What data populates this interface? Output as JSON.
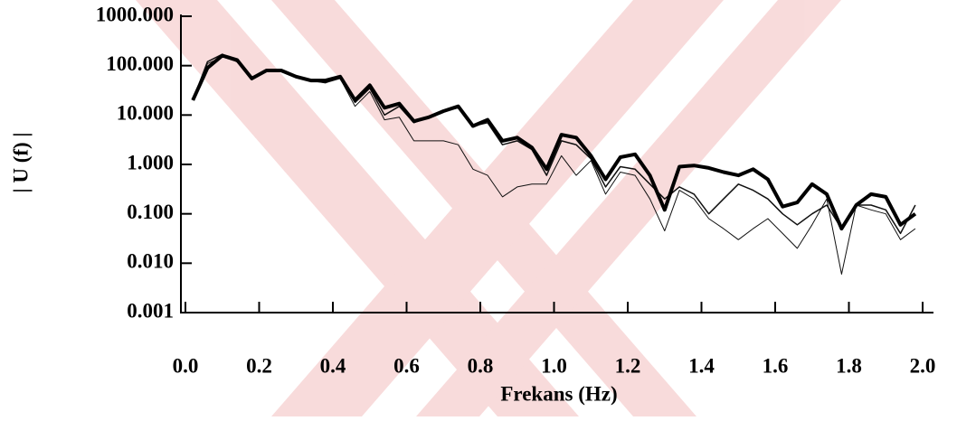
{
  "chart_data": {
    "type": "line",
    "xlabel": "Frekans (Hz)",
    "ylabel": "| U (f) |",
    "log_y": true,
    "xlim": [
      0,
      2
    ],
    "xticks": [
      {
        "value": 0,
        "label": "0.0"
      },
      0.2,
      0.4,
      0.6,
      0.8,
      {
        "value": 1,
        "label": "1.0"
      },
      1.2,
      1.4,
      1.6,
      1.8,
      {
        "value": 2,
        "label": "2.0"
      }
    ],
    "ylim": [
      0.001,
      1000
    ],
    "yticks": [
      {
        "value": 0.001,
        "label": "0.001"
      },
      {
        "value": 0.01,
        "label": "0.010"
      },
      {
        "value": 0.1,
        "label": "0.100"
      },
      {
        "value": 1,
        "label": "1.000"
      },
      {
        "value": 10,
        "label": "10.000"
      },
      {
        "value": 100,
        "label": "100.000"
      },
      {
        "value": 1000,
        "label": "1000.000"
      }
    ],
    "x": [
      0.02,
      0.06,
      0.1,
      0.14,
      0.18,
      0.22,
      0.26,
      0.3,
      0.34,
      0.38,
      0.42,
      0.46,
      0.5,
      0.54,
      0.58,
      0.62,
      0.66,
      0.7,
      0.74,
      0.78,
      0.82,
      0.86,
      0.9,
      0.94,
      0.98,
      1.02,
      1.06,
      1.1,
      1.14,
      1.18,
      1.22,
      1.26,
      1.3,
      1.34,
      1.38,
      1.42,
      1.46,
      1.5,
      1.54,
      1.58,
      1.62,
      1.66,
      1.7,
      1.74,
      1.78,
      1.82,
      1.86,
      1.9,
      1.94,
      1.98
    ],
    "series": [
      {
        "color": "#111111",
        "line_width": 1,
        "values": [
          20,
          110,
          150,
          120,
          55,
          80,
          75,
          60,
          50,
          45,
          55,
          15,
          30,
          8,
          9,
          3,
          3,
          3,
          2.5,
          0.8,
          0.6,
          0.22,
          0.35,
          0.4,
          0.4,
          1.5,
          0.6,
          1.2,
          0.25,
          0.7,
          0.6,
          0.2,
          0.045,
          0.3,
          0.2,
          0.08,
          0.05,
          0.03,
          0.05,
          0.08,
          0.04,
          0.02,
          0.06,
          0.2,
          0.006,
          0.15,
          0.12,
          0.1,
          0.03,
          0.05
        ]
      },
      {
        "color": "#111111",
        "line_width": 1.5,
        "values": [
          20,
          120,
          170,
          120,
          55,
          80,
          80,
          60,
          50,
          45,
          60,
          18,
          35,
          10,
          15,
          7,
          9,
          12,
          14,
          6,
          7,
          2.5,
          3,
          2,
          0.6,
          3,
          2.5,
          1.3,
          0.35,
          0.9,
          0.8,
          0.4,
          0.2,
          0.35,
          0.25,
          0.1,
          0.2,
          0.4,
          0.3,
          0.2,
          0.1,
          0.06,
          0.1,
          0.15,
          0.05,
          0.15,
          0.15,
          0.12,
          0.04,
          0.15
        ]
      },
      {
        "color": "#000000",
        "line_width": 4,
        "values": [
          20,
          90,
          160,
          130,
          55,
          80,
          80,
          60,
          50,
          50,
          60,
          20,
          40,
          14,
          17,
          7.5,
          9,
          12,
          15,
          6,
          8,
          3,
          3.5,
          2.2,
          0.8,
          4,
          3.5,
          1.5,
          0.5,
          1.4,
          1.6,
          0.6,
          0.12,
          0.9,
          0.95,
          0.85,
          0.7,
          0.6,
          0.8,
          0.5,
          0.14,
          0.17,
          0.4,
          0.25,
          0.05,
          0.15,
          0.25,
          0.22,
          0.06,
          0.1
        ]
      }
    ]
  }
}
